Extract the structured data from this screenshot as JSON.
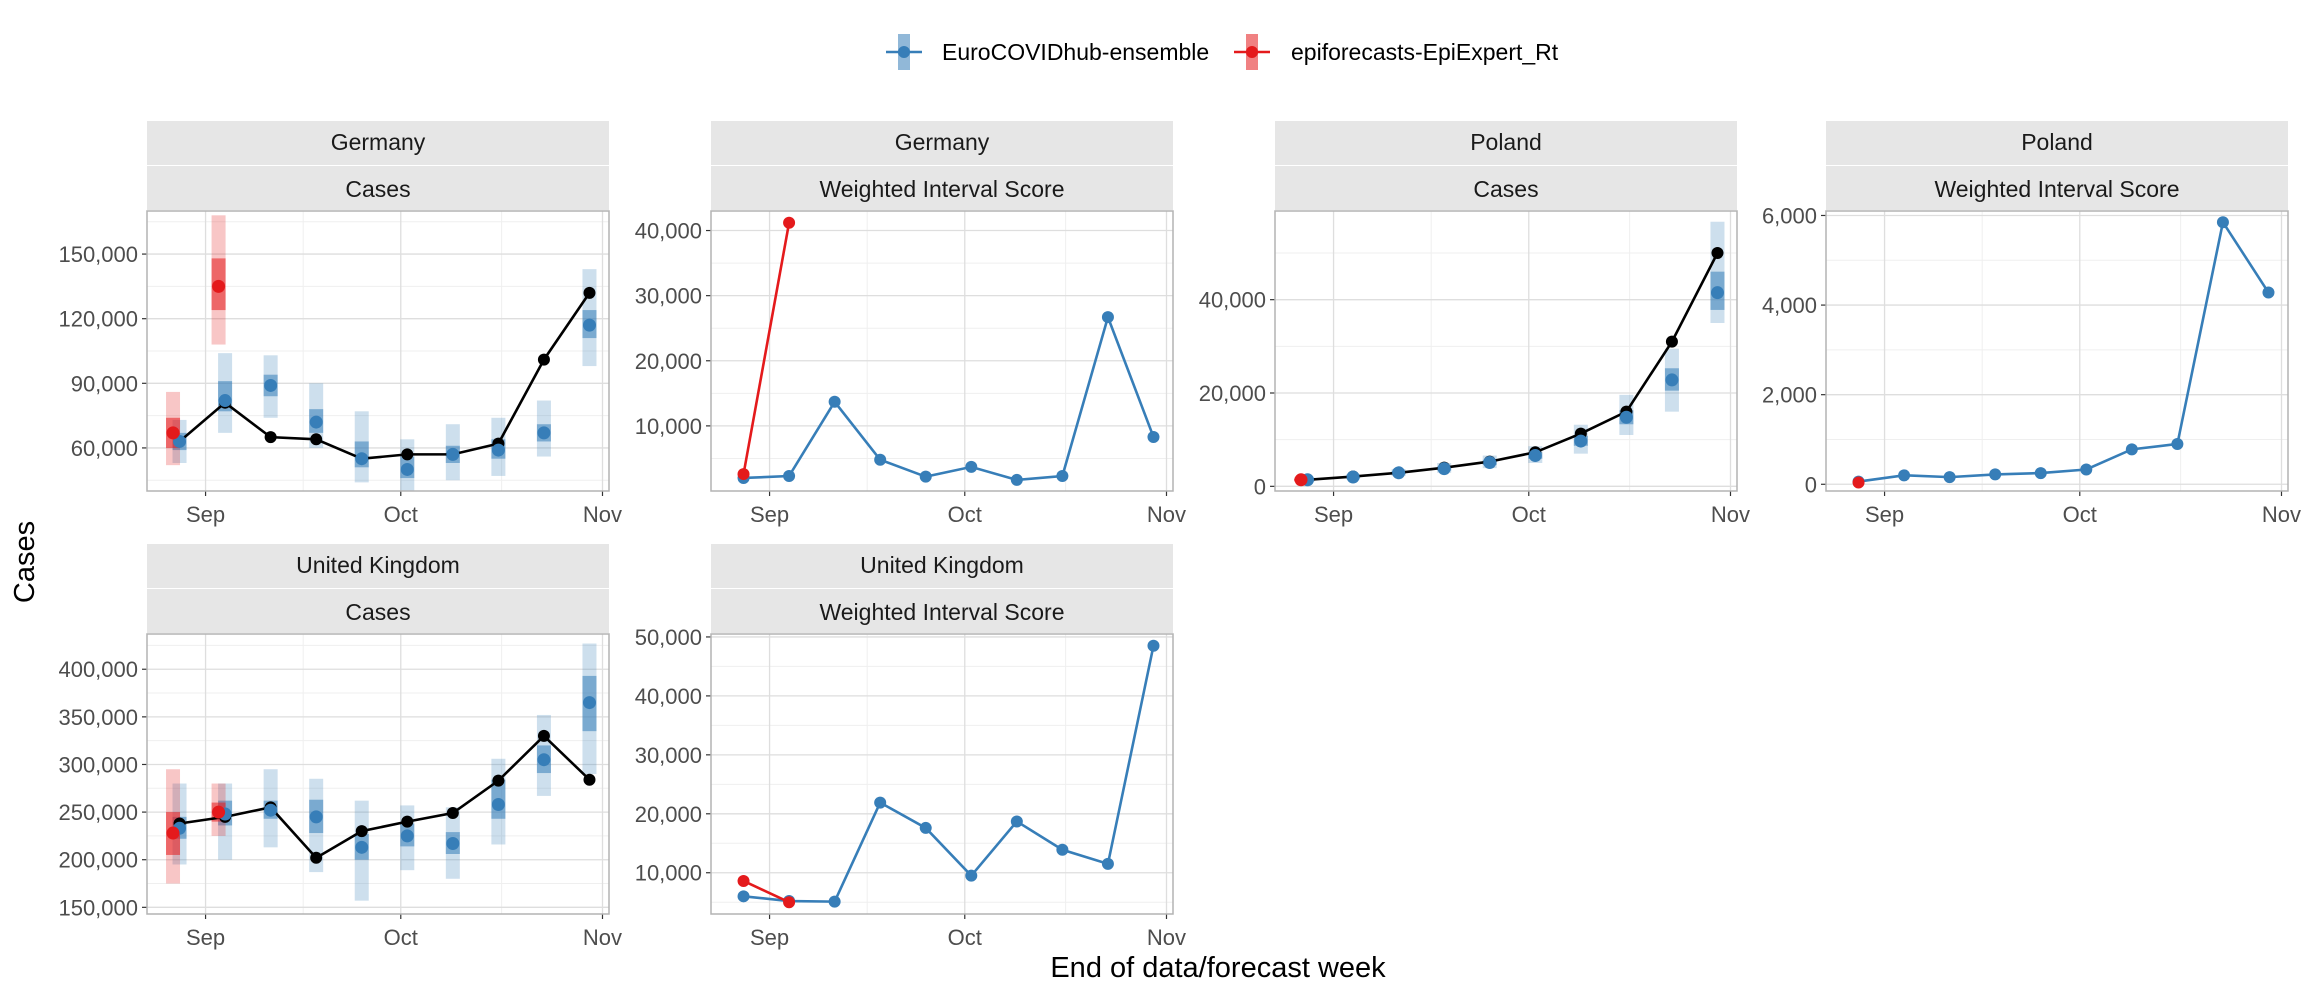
{
  "figure": {
    "xlabel": "End of data/forecast week",
    "ylabel": "Cases"
  },
  "legend": {
    "placement": "top-center",
    "entries": [
      {
        "name": "EuroCOVIDhub-ensemble",
        "color": "#377eb8"
      },
      {
        "name": "epiforecasts-EpiExpert_Rt",
        "color": "#e41a1c"
      }
    ]
  },
  "colors": {
    "truth": "#000000",
    "strip_background": "#e6e6e6",
    "grid_major": "#dedede",
    "grid_minor": "#efefef",
    "panel_border": "#b3b3b3"
  },
  "chart_data": [
    {
      "type": "line",
      "facet": {
        "location": "Germany",
        "metric": "Cases"
      },
      "xlim": [
        "2021-08-23",
        "2021-11-02"
      ],
      "ylim": [
        40000,
        170000
      ],
      "xticks": [
        "2021-09-01",
        "2021-10-01",
        "2021-11-01"
      ],
      "xticklabels": [
        "Sep",
        "Oct",
        "Nov"
      ],
      "yticks": [
        60000,
        90000,
        120000,
        150000
      ],
      "yticklabels": [
        "60,000",
        "90,000",
        "120,000",
        "150,000"
      ],
      "truth": {
        "x": [
          "2021-08-28",
          "2021-09-04",
          "2021-09-11",
          "2021-09-18",
          "2021-09-25",
          "2021-10-02",
          "2021-10-09",
          "2021-10-16",
          "2021-10-23",
          "2021-10-30"
        ],
        "y": [
          63000,
          81000,
          65000,
          64000,
          55000,
          57000,
          57000,
          62000,
          101000,
          132000
        ]
      },
      "series": [
        {
          "name": "EuroCOVIDhub-ensemble",
          "x": [
            "2021-08-28",
            "2021-09-04",
            "2021-09-11",
            "2021-09-18",
            "2021-09-25",
            "2021-10-02",
            "2021-10-09",
            "2021-10-16",
            "2021-10-23",
            "2021-10-30"
          ],
          "median": [
            63000,
            82000,
            89000,
            72000,
            55000,
            50000,
            57000,
            59000,
            67000,
            117000
          ],
          "q25": [
            59000,
            77000,
            84000,
            67000,
            51000,
            46000,
            53000,
            55000,
            63000,
            111000
          ],
          "q75": [
            67000,
            91000,
            94000,
            78000,
            63000,
            56000,
            61000,
            64000,
            71000,
            124000
          ],
          "q05": [
            53000,
            67000,
            74000,
            60000,
            44000,
            40000,
            45000,
            47000,
            56000,
            98000
          ],
          "q95": [
            73000,
            104000,
            103000,
            90000,
            77000,
            64000,
            71000,
            74000,
            82000,
            143000
          ]
        },
        {
          "name": "epiforecasts-EpiExpert_Rt",
          "x": [
            "2021-08-27",
            "2021-09-03"
          ],
          "median": [
            67000,
            135000
          ],
          "q25": [
            60000,
            124000
          ],
          "q75": [
            74000,
            148000
          ],
          "q05": [
            52000,
            108000
          ],
          "q95": [
            86000,
            168000
          ]
        }
      ]
    },
    {
      "type": "line",
      "facet": {
        "location": "Germany",
        "metric": "Weighted Interval Score"
      },
      "xlim": [
        "2021-08-23",
        "2021-11-02"
      ],
      "ylim": [
        0,
        43000
      ],
      "xticks": [
        "2021-09-01",
        "2021-10-01",
        "2021-11-01"
      ],
      "xticklabels": [
        "Sep",
        "Oct",
        "Nov"
      ],
      "yticks": [
        10000,
        20000,
        30000,
        40000
      ],
      "yticklabels": [
        "10,000",
        "20,000",
        "30,000",
        "40,000"
      ],
      "series": [
        {
          "name": "EuroCOVIDhub-ensemble",
          "x": [
            "2021-08-28",
            "2021-09-04",
            "2021-09-11",
            "2021-09-18",
            "2021-09-25",
            "2021-10-02",
            "2021-10-09",
            "2021-10-16",
            "2021-10-23",
            "2021-10-30"
          ],
          "y": [
            2000,
            2300,
            13700,
            4800,
            2200,
            3700,
            1700,
            2300,
            26700,
            8300
          ]
        },
        {
          "name": "epiforecasts-EpiExpert_Rt",
          "x": [
            "2021-08-28",
            "2021-09-04"
          ],
          "y": [
            2600,
            41200
          ]
        }
      ]
    },
    {
      "type": "line",
      "facet": {
        "location": "Poland",
        "metric": "Cases"
      },
      "xlim": [
        "2021-08-23",
        "2021-11-02"
      ],
      "ylim": [
        -1000,
        59000
      ],
      "xticks": [
        "2021-09-01",
        "2021-10-01",
        "2021-11-01"
      ],
      "xticklabels": [
        "Sep",
        "Oct",
        "Nov"
      ],
      "yticks": [
        0,
        20000,
        40000
      ],
      "yticklabels": [
        "0",
        "20,000",
        "40,000"
      ],
      "truth": {
        "x": [
          "2021-08-28",
          "2021-09-04",
          "2021-09-11",
          "2021-09-18",
          "2021-09-25",
          "2021-10-02",
          "2021-10-09",
          "2021-10-16",
          "2021-10-23",
          "2021-10-30"
        ],
        "y": [
          1400,
          2100,
          2900,
          4000,
          5300,
          7300,
          11300,
          16000,
          31000,
          50000
        ]
      },
      "series": [
        {
          "name": "EuroCOVIDhub-ensemble",
          "x": [
            "2021-08-28",
            "2021-09-04",
            "2021-09-11",
            "2021-09-18",
            "2021-09-25",
            "2021-10-02",
            "2021-10-09",
            "2021-10-16",
            "2021-10-23",
            "2021-10-30"
          ],
          "median": [
            1400,
            2000,
            2900,
            3800,
            5100,
            6600,
            9700,
            14800,
            22800,
            41500
          ],
          "q25": [
            1200,
            1800,
            2600,
            3400,
            4600,
            5900,
            8700,
            13300,
            20500,
            37800
          ],
          "q75": [
            1600,
            2300,
            3300,
            4300,
            5700,
            7300,
            10800,
            16300,
            25300,
            46000
          ],
          "q05": [
            1000,
            1500,
            2200,
            2900,
            3900,
            5000,
            7000,
            11000,
            16000,
            35000
          ],
          "q95": [
            1900,
            2600,
            3700,
            5000,
            6600,
            8600,
            13200,
            19600,
            29500,
            56700
          ]
        },
        {
          "name": "epiforecasts-EpiExpert_Rt",
          "x": [
            "2021-08-27"
          ],
          "median": [
            1400
          ],
          "q25": [
            1200
          ],
          "q75": [
            1600
          ],
          "q05": [
            1000
          ],
          "q95": [
            1900
          ]
        }
      ]
    },
    {
      "type": "line",
      "facet": {
        "location": "Poland",
        "metric": "Weighted Interval Score"
      },
      "xlim": [
        "2021-08-23",
        "2021-11-02"
      ],
      "ylim": [
        -150,
        6100
      ],
      "xticks": [
        "2021-09-01",
        "2021-10-01",
        "2021-11-01"
      ],
      "xticklabels": [
        "Sep",
        "Oct",
        "Nov"
      ],
      "yticks": [
        0,
        2000,
        4000,
        6000
      ],
      "yticklabels": [
        "0",
        "2,000",
        "4,000",
        "6,000"
      ],
      "series": [
        {
          "name": "EuroCOVIDhub-ensemble",
          "x": [
            "2021-08-28",
            "2021-09-04",
            "2021-09-11",
            "2021-09-18",
            "2021-09-25",
            "2021-10-02",
            "2021-10-09",
            "2021-10-16",
            "2021-10-23",
            "2021-10-30"
          ],
          "y": [
            60,
            200,
            160,
            220,
            250,
            330,
            780,
            900,
            5850,
            4280
          ]
        },
        {
          "name": "epiforecasts-EpiExpert_Rt",
          "x": [
            "2021-08-28"
          ],
          "y": [
            40
          ]
        }
      ]
    },
    {
      "type": "line",
      "facet": {
        "location": "United Kingdom",
        "metric": "Cases"
      },
      "xlim": [
        "2021-08-23",
        "2021-11-02"
      ],
      "ylim": [
        143000,
        437000
      ],
      "xticks": [
        "2021-09-01",
        "2021-10-01",
        "2021-11-01"
      ],
      "xticklabels": [
        "Sep",
        "Oct",
        "Nov"
      ],
      "yticks": [
        150000,
        200000,
        250000,
        300000,
        350000,
        400000
      ],
      "yticklabels": [
        "150,000",
        "200,000",
        "250,000",
        "300,000",
        "350,000",
        "400,000"
      ],
      "truth": {
        "x": [
          "2021-08-28",
          "2021-09-04",
          "2021-09-11",
          "2021-09-18",
          "2021-09-25",
          "2021-10-02",
          "2021-10-09",
          "2021-10-16",
          "2021-10-23",
          "2021-10-30"
        ],
        "y": [
          238000,
          245000,
          255000,
          202000,
          230000,
          240000,
          249000,
          283000,
          330000,
          284000
        ]
      },
      "series": [
        {
          "name": "EuroCOVIDhub-ensemble",
          "x": [
            "2021-08-28",
            "2021-09-04",
            "2021-09-11",
            "2021-09-18",
            "2021-09-25",
            "2021-10-02",
            "2021-10-09",
            "2021-10-16",
            "2021-10-23",
            "2021-10-30"
          ],
          "median": [
            233000,
            248000,
            252000,
            245000,
            213000,
            225000,
            217000,
            258000,
            305000,
            365000
          ],
          "q25": [
            222000,
            236000,
            243000,
            228000,
            200000,
            214000,
            206000,
            243000,
            291000,
            335000
          ],
          "q75": [
            245000,
            262000,
            262000,
            263000,
            227000,
            238000,
            229000,
            284000,
            320000,
            393000
          ],
          "q05": [
            195000,
            200000,
            213000,
            187000,
            157000,
            189000,
            180000,
            216000,
            267000,
            290000
          ],
          "q95": [
            280000,
            280000,
            295000,
            285000,
            262000,
            257000,
            255000,
            306000,
            352000,
            427000
          ]
        },
        {
          "name": "epiforecasts-EpiExpert_Rt",
          "x": [
            "2021-08-27",
            "2021-09-03"
          ],
          "median": [
            228000,
            250000
          ],
          "q25": [
            205000,
            240000
          ],
          "q75": [
            250000,
            260000
          ],
          "q05": [
            175000,
            225000
          ],
          "q95": [
            295000,
            280000
          ]
        }
      ]
    },
    {
      "type": "line",
      "facet": {
        "location": "United Kingdom",
        "metric": "Weighted Interval Score"
      },
      "xlim": [
        "2021-08-23",
        "2021-11-02"
      ],
      "ylim": [
        3000,
        50500
      ],
      "xticks": [
        "2021-09-01",
        "2021-10-01",
        "2021-11-01"
      ],
      "xticklabels": [
        "Sep",
        "Oct",
        "Nov"
      ],
      "yticks": [
        10000,
        20000,
        30000,
        40000,
        50000
      ],
      "yticklabels": [
        "10,000",
        "20,000",
        "30,000",
        "40,000",
        "50,000"
      ],
      "series": [
        {
          "name": "EuroCOVIDhub-ensemble",
          "x": [
            "2021-08-28",
            "2021-09-04",
            "2021-09-11",
            "2021-09-18",
            "2021-09-25",
            "2021-10-02",
            "2021-10-09",
            "2021-10-16",
            "2021-10-23",
            "2021-10-30"
          ],
          "y": [
            6000,
            5200,
            5100,
            21900,
            17600,
            9500,
            18700,
            13900,
            11500,
            48500
          ]
        },
        {
          "name": "epiforecasts-EpiExpert_Rt",
          "x": [
            "2021-08-28",
            "2021-09-04"
          ],
          "y": [
            8600,
            5000
          ]
        }
      ]
    }
  ]
}
